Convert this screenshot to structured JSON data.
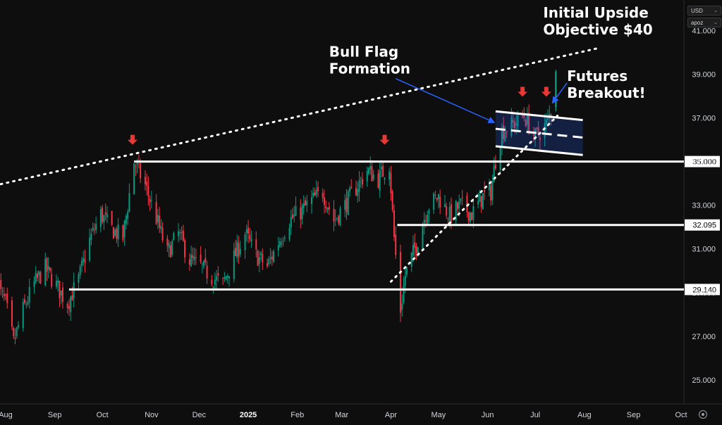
{
  "header": {
    "currency_select": "USD",
    "scale_select": "apoz"
  },
  "chart_data": {
    "type": "candlestick",
    "title": "",
    "ylim": [
      23.9,
      42.4
    ],
    "y_ticks": [
      "41.000",
      "39.000",
      "37.000",
      "35.000",
      "33.000",
      "31.000",
      "29.000",
      "27.000",
      "25.000"
    ],
    "y_tick_values": [
      41,
      39,
      37,
      35,
      33,
      31,
      29,
      27,
      25
    ],
    "x_ticks": [
      {
        "label": "Aug",
        "date": "2024-08-01"
      },
      {
        "label": "Sep",
        "date": "2024-09-01"
      },
      {
        "label": "Oct",
        "date": "2024-10-01"
      },
      {
        "label": "Nov",
        "date": "2024-11-01"
      },
      {
        "label": "Dec",
        "date": "2024-12-01"
      },
      {
        "label": "2025",
        "date": "2025-01-01",
        "bold": true
      },
      {
        "label": "Feb",
        "date": "2025-02-01"
      },
      {
        "label": "Mar",
        "date": "2025-03-01"
      },
      {
        "label": "Apr",
        "date": "2025-04-01"
      },
      {
        "label": "May",
        "date": "2025-05-01"
      },
      {
        "label": "Jun",
        "date": "2025-06-01"
      },
      {
        "label": "Jul",
        "date": "2025-07-01"
      },
      {
        "label": "Aug",
        "date": "2025-08-01"
      },
      {
        "label": "Sep",
        "date": "2025-09-01"
      },
      {
        "label": "Oct",
        "date": "2025-10-01"
      }
    ],
    "price_labels": [
      {
        "text": "35.000",
        "value": 35.0
      },
      {
        "text": "32.095",
        "value": 32.095
      },
      {
        "text": "29.140",
        "value": 29.14
      }
    ],
    "horizontal_lines": [
      {
        "value": 35.0,
        "from": "2024-10-21"
      },
      {
        "value": 32.095,
        "from": "2025-04-05"
      },
      {
        "value": 29.14,
        "from": "2024-09-10"
      }
    ],
    "trendlines": [
      {
        "style": "dotted",
        "from": {
          "date": "2024-07-25",
          "value": 33.9
        },
        "to": {
          "date": "2025-08-10",
          "value": 40.2
        }
      },
      {
        "style": "dotted",
        "from": {
          "date": "2025-04-01",
          "value": 29.5
        },
        "to": {
          "date": "2025-07-15",
          "value": 37.1
        }
      }
    ],
    "flag_channel": {
      "upper": {
        "from": {
          "date": "2025-06-06",
          "value": 37.3
        },
        "to": {
          "date": "2025-07-31",
          "value": 36.9
        }
      },
      "lower": {
        "from": {
          "date": "2025-06-06",
          "value": 35.7
        },
        "to": {
          "date": "2025-07-31",
          "value": 35.3
        }
      },
      "mid": {
        "from": {
          "date": "2025-06-06",
          "value": 36.5
        },
        "to": {
          "date": "2025-07-31",
          "value": 36.1
        }
      }
    },
    "resistance_markers": [
      {
        "date": "2024-10-20",
        "value": 35.9
      },
      {
        "date": "2025-03-28",
        "value": 35.9
      },
      {
        "date": "2025-06-23",
        "value": 38.1
      },
      {
        "date": "2025-07-08",
        "value": 38.1
      }
    ],
    "annotations": [
      {
        "lines": [
          "Initial Upside",
          "Objective $40"
        ],
        "anchor_date": "2025-07-06",
        "anchor_value": 41.6
      },
      {
        "lines": [
          "Bull Flag",
          "Formation"
        ],
        "anchor_date": "2025-02-21",
        "anchor_value": 39.8
      },
      {
        "lines": [
          "Futures",
          "Breakout!"
        ],
        "anchor_date": "2025-07-21",
        "anchor_value": 38.7
      }
    ],
    "pointer_arrows": [
      {
        "from": {
          "date": "2025-04-04",
          "value": 38.8
        },
        "to": {
          "date": "2025-06-05",
          "value": 36.8
        }
      },
      {
        "from": {
          "date": "2025-07-21",
          "value": 38.6
        },
        "to": {
          "date": "2025-07-12",
          "value": 37.7
        }
      }
    ],
    "ohlc_path": [
      [
        "2024-07-25",
        29.5
      ],
      [
        "2024-08-01",
        28.5
      ],
      [
        "2024-08-06",
        26.7
      ],
      [
        "2024-08-12",
        28.2
      ],
      [
        "2024-08-19",
        29.4
      ],
      [
        "2024-08-26",
        30.1
      ],
      [
        "2024-09-03",
        29.2
      ],
      [
        "2024-09-09",
        28.5
      ],
      [
        "2024-09-16",
        29.6
      ],
      [
        "2024-09-23",
        31.4
      ],
      [
        "2024-09-30",
        32.6
      ],
      [
        "2024-10-07",
        31.9
      ],
      [
        "2024-10-14",
        31.5
      ],
      [
        "2024-10-21",
        35.0
      ],
      [
        "2024-10-28",
        33.9
      ],
      [
        "2024-11-04",
        32.4
      ],
      [
        "2024-11-11",
        30.8
      ],
      [
        "2024-11-18",
        31.7
      ],
      [
        "2024-11-25",
        30.5
      ],
      [
        "2024-12-02",
        30.2
      ],
      [
        "2024-12-09",
        29.7
      ],
      [
        "2024-12-16",
        29.4
      ],
      [
        "2024-12-23",
        30.6
      ],
      [
        "2024-12-30",
        31.7
      ],
      [
        "2025-01-06",
        30.7
      ],
      [
        "2025-01-13",
        30.2
      ],
      [
        "2025-01-20",
        31.3
      ],
      [
        "2025-01-27",
        32.3
      ],
      [
        "2025-02-03",
        32.7
      ],
      [
        "2025-02-10",
        33.2
      ],
      [
        "2025-02-17",
        33.6
      ],
      [
        "2025-02-24",
        32.3
      ],
      [
        "2025-03-03",
        33.0
      ],
      [
        "2025-03-10",
        33.8
      ],
      [
        "2025-03-17",
        34.6
      ],
      [
        "2025-03-24",
        34.2
      ],
      [
        "2025-03-31",
        34.9
      ],
      [
        "2025-04-03",
        31.5
      ],
      [
        "2025-04-07",
        28.2
      ],
      [
        "2025-04-10",
        29.8
      ],
      [
        "2025-04-17",
        31.2
      ],
      [
        "2025-04-24",
        32.9
      ],
      [
        "2025-05-01",
        33.4
      ],
      [
        "2025-05-08",
        32.5
      ],
      [
        "2025-05-15",
        33.0
      ],
      [
        "2025-05-22",
        32.6
      ],
      [
        "2025-05-29",
        33.4
      ],
      [
        "2025-06-03",
        33.6
      ],
      [
        "2025-06-06",
        35.1
      ],
      [
        "2025-06-10",
        36.4
      ],
      [
        "2025-06-17",
        36.7
      ],
      [
        "2025-06-24",
        37.1
      ],
      [
        "2025-07-01",
        36.1
      ],
      [
        "2025-07-08",
        36.7
      ],
      [
        "2025-07-11",
        37.3
      ],
      [
        "2025-07-14",
        39.1
      ]
    ]
  }
}
